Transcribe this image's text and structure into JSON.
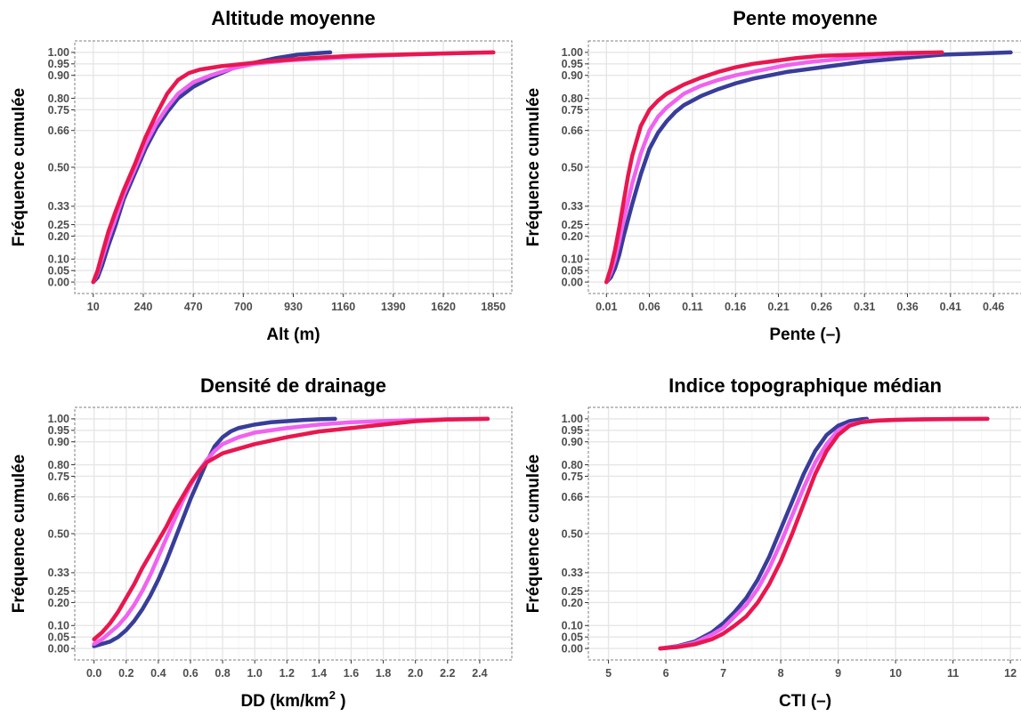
{
  "chart_data": [
    {
      "type": "line",
      "title": "Altitude moyenne",
      "xlabel": "Alt (m)",
      "xlabel_sup": "",
      "xlabel_tail": "",
      "ylabel": "Fréquence cumulée",
      "xlim": [
        -75,
        1935
      ],
      "ylim": [
        -0.05,
        1.05
      ],
      "x_ticks": [
        10,
        240,
        470,
        700,
        930,
        1160,
        1390,
        1620,
        1850
      ],
      "x_tick_labels": [
        "10",
        "240",
        "470",
        "700",
        "930",
        "1160",
        "1390",
        "1620",
        "1850"
      ],
      "y_ticks": [
        0.0,
        0.05,
        0.1,
        0.2,
        0.25,
        0.33,
        0.5,
        0.66,
        0.75,
        0.8,
        0.9,
        0.95,
        1.0
      ],
      "y_tick_labels": [
        "0.00",
        "0.05",
        "0.10",
        "0.20",
        "0.25",
        "0.33",
        "0.50",
        "0.66",
        "0.75",
        "0.80",
        "0.90",
        "0.95",
        "1.00"
      ],
      "grid": true,
      "series": [
        {
          "color": "#383d99",
          "x": [
            10,
            30,
            50,
            80,
            110,
            150,
            200,
            250,
            300,
            350,
            400,
            470,
            550,
            650,
            750,
            850,
            950,
            1050,
            1100
          ],
          "y": [
            0.0,
            0.02,
            0.07,
            0.16,
            0.24,
            0.36,
            0.47,
            0.58,
            0.67,
            0.74,
            0.8,
            0.85,
            0.89,
            0.93,
            0.955,
            0.975,
            0.99,
            0.997,
            1.0
          ]
        },
        {
          "color": "#f062ef",
          "x": [
            10,
            30,
            50,
            80,
            110,
            150,
            200,
            250,
            300,
            350,
            400,
            470,
            550,
            650,
            750,
            900,
            1100,
            1300,
            1500,
            1700,
            1850
          ],
          "y": [
            0.0,
            0.04,
            0.1,
            0.19,
            0.27,
            0.38,
            0.49,
            0.6,
            0.69,
            0.76,
            0.82,
            0.87,
            0.9,
            0.93,
            0.95,
            0.965,
            0.975,
            0.985,
            0.992,
            0.997,
            1.0
          ]
        },
        {
          "color": "#e8174f",
          "x": [
            10,
            30,
            50,
            80,
            110,
            150,
            200,
            250,
            300,
            350,
            400,
            450,
            500,
            600,
            700,
            800,
            1000,
            1200,
            1400,
            1600,
            1850
          ],
          "y": [
            0.0,
            0.05,
            0.12,
            0.22,
            0.3,
            0.4,
            0.51,
            0.63,
            0.73,
            0.82,
            0.88,
            0.91,
            0.925,
            0.94,
            0.95,
            0.96,
            0.975,
            0.985,
            0.99,
            0.995,
            1.0
          ]
        }
      ]
    },
    {
      "type": "line",
      "title": "Pente moyenne",
      "xlabel": "Pente (–)",
      "xlabel_sup": "",
      "xlabel_tail": "",
      "ylabel": "Fréquence cumulée",
      "xlim": [
        -0.011,
        0.493
      ],
      "ylim": [
        -0.05,
        1.05
      ],
      "x_ticks": [
        0.01,
        0.06,
        0.11,
        0.16,
        0.21,
        0.26,
        0.31,
        0.36,
        0.41,
        0.46
      ],
      "x_tick_labels": [
        "0.01",
        "0.06",
        "0.11",
        "0.16",
        "0.21",
        "0.26",
        "0.31",
        "0.36",
        "0.41",
        "0.46"
      ],
      "y_ticks": [
        0.0,
        0.05,
        0.1,
        0.2,
        0.25,
        0.33,
        0.5,
        0.66,
        0.75,
        0.8,
        0.9,
        0.95,
        1.0
      ],
      "y_tick_labels": [
        "0.00",
        "0.05",
        "0.10",
        "0.20",
        "0.25",
        "0.33",
        "0.50",
        "0.66",
        "0.75",
        "0.80",
        "0.90",
        "0.95",
        "1.00"
      ],
      "grid": true,
      "series": [
        {
          "color": "#383d99",
          "x": [
            0.01,
            0.015,
            0.02,
            0.025,
            0.03,
            0.04,
            0.05,
            0.06,
            0.07,
            0.08,
            0.09,
            0.1,
            0.12,
            0.14,
            0.16,
            0.18,
            0.2,
            0.22,
            0.25,
            0.28,
            0.31,
            0.34,
            0.37,
            0.4,
            0.44,
            0.48
          ],
          "y": [
            0.0,
            0.02,
            0.06,
            0.12,
            0.2,
            0.34,
            0.47,
            0.58,
            0.65,
            0.7,
            0.74,
            0.77,
            0.81,
            0.84,
            0.865,
            0.885,
            0.9,
            0.915,
            0.93,
            0.945,
            0.96,
            0.97,
            0.98,
            0.99,
            0.995,
            1.0
          ]
        },
        {
          "color": "#f062ef",
          "x": [
            0.01,
            0.015,
            0.02,
            0.025,
            0.03,
            0.04,
            0.05,
            0.06,
            0.07,
            0.08,
            0.09,
            0.1,
            0.12,
            0.14,
            0.16,
            0.18,
            0.2,
            0.22,
            0.25,
            0.28,
            0.31,
            0.35,
            0.4
          ],
          "y": [
            0.0,
            0.04,
            0.1,
            0.18,
            0.27,
            0.43,
            0.56,
            0.66,
            0.72,
            0.76,
            0.79,
            0.82,
            0.855,
            0.88,
            0.9,
            0.915,
            0.93,
            0.945,
            0.96,
            0.97,
            0.98,
            0.99,
            1.0
          ]
        },
        {
          "color": "#e8174f",
          "x": [
            0.01,
            0.015,
            0.02,
            0.025,
            0.03,
            0.035,
            0.04,
            0.05,
            0.06,
            0.07,
            0.08,
            0.09,
            0.1,
            0.12,
            0.14,
            0.16,
            0.18,
            0.2,
            0.23,
            0.26,
            0.3,
            0.35,
            0.4
          ],
          "y": [
            0.0,
            0.06,
            0.14,
            0.24,
            0.35,
            0.46,
            0.55,
            0.68,
            0.75,
            0.79,
            0.82,
            0.84,
            0.86,
            0.89,
            0.915,
            0.935,
            0.95,
            0.96,
            0.975,
            0.985,
            0.99,
            0.997,
            1.0
          ]
        }
      ]
    },
    {
      "type": "line",
      "title": "Densité de drainage",
      "xlabel": "DD (km/km",
      "xlabel_sup": "2",
      "xlabel_tail": " )",
      "ylabel": "Fréquence cumulée",
      "xlim": [
        -0.12,
        2.6
      ],
      "ylim": [
        -0.05,
        1.05
      ],
      "x_ticks": [
        0.0,
        0.2,
        0.4,
        0.6,
        0.8,
        1.0,
        1.2,
        1.4,
        1.6,
        1.8,
        2.0,
        2.2,
        2.4
      ],
      "x_tick_labels": [
        "0.0",
        "0.2",
        "0.4",
        "0.6",
        "0.8",
        "1.0",
        "1.2",
        "1.4",
        "1.6",
        "1.8",
        "2.0",
        "2.2",
        "2.4"
      ],
      "y_ticks": [
        0.0,
        0.05,
        0.1,
        0.2,
        0.25,
        0.33,
        0.5,
        0.66,
        0.75,
        0.8,
        0.9,
        0.95,
        1.0
      ],
      "y_tick_labels": [
        "0.00",
        "0.05",
        "0.10",
        "0.20",
        "0.25",
        "0.33",
        "0.50",
        "0.66",
        "0.75",
        "0.80",
        "0.90",
        "0.95",
        "1.00"
      ],
      "grid": true,
      "series": [
        {
          "color": "#383d99",
          "x": [
            0.0,
            0.05,
            0.1,
            0.15,
            0.2,
            0.25,
            0.3,
            0.35,
            0.4,
            0.45,
            0.5,
            0.55,
            0.6,
            0.65,
            0.7,
            0.75,
            0.8,
            0.85,
            0.9,
            1.0,
            1.1,
            1.2,
            1.3,
            1.4,
            1.5
          ],
          "y": [
            0.01,
            0.02,
            0.03,
            0.05,
            0.08,
            0.12,
            0.17,
            0.23,
            0.3,
            0.38,
            0.47,
            0.56,
            0.65,
            0.73,
            0.81,
            0.88,
            0.92,
            0.945,
            0.96,
            0.975,
            0.985,
            0.99,
            0.995,
            0.998,
            1.0
          ]
        },
        {
          "color": "#f062ef",
          "x": [
            0.0,
            0.05,
            0.1,
            0.15,
            0.2,
            0.25,
            0.3,
            0.35,
            0.4,
            0.45,
            0.5,
            0.55,
            0.6,
            0.65,
            0.7,
            0.75,
            0.8,
            0.9,
            1.0,
            1.2,
            1.4,
            1.6,
            1.8,
            2.0,
            2.2,
            2.45
          ],
          "y": [
            0.02,
            0.04,
            0.07,
            0.1,
            0.14,
            0.19,
            0.25,
            0.32,
            0.4,
            0.48,
            0.56,
            0.64,
            0.71,
            0.77,
            0.82,
            0.86,
            0.89,
            0.92,
            0.94,
            0.96,
            0.975,
            0.985,
            0.99,
            0.995,
            0.998,
            1.0
          ]
        },
        {
          "color": "#e8174f",
          "x": [
            0.0,
            0.05,
            0.1,
            0.15,
            0.2,
            0.25,
            0.3,
            0.35,
            0.4,
            0.45,
            0.5,
            0.55,
            0.6,
            0.65,
            0.7,
            0.75,
            0.8,
            0.9,
            1.0,
            1.1,
            1.2,
            1.4,
            1.6,
            1.8,
            2.0,
            2.2,
            2.45
          ],
          "y": [
            0.04,
            0.07,
            0.11,
            0.16,
            0.22,
            0.28,
            0.35,
            0.41,
            0.47,
            0.53,
            0.6,
            0.66,
            0.72,
            0.77,
            0.81,
            0.83,
            0.85,
            0.87,
            0.89,
            0.905,
            0.92,
            0.945,
            0.96,
            0.975,
            0.99,
            0.997,
            1.0
          ]
        }
      ]
    },
    {
      "type": "line",
      "title": "Indice topographique médian",
      "xlabel": "CTI (–)",
      "xlabel_sup": "",
      "xlabel_tail": "",
      "ylabel": "Fréquence cumulée",
      "xlim": [
        4.65,
        12.2
      ],
      "ylim": [
        -0.05,
        1.05
      ],
      "x_ticks": [
        5,
        6,
        7,
        8,
        9,
        10,
        11,
        12
      ],
      "x_tick_labels": [
        "5",
        "6",
        "7",
        "8",
        "9",
        "10",
        "11",
        "12"
      ],
      "y_ticks": [
        0.0,
        0.05,
        0.1,
        0.2,
        0.25,
        0.33,
        0.5,
        0.66,
        0.75,
        0.8,
        0.9,
        0.95,
        1.0
      ],
      "y_tick_labels": [
        "0.00",
        "0.05",
        "0.10",
        "0.20",
        "0.25",
        "0.33",
        "0.50",
        "0.66",
        "0.75",
        "0.80",
        "0.90",
        "0.95",
        "1.00"
      ],
      "grid": true,
      "series": [
        {
          "color": "#383d99",
          "x": [
            5.9,
            6.2,
            6.5,
            6.8,
            7.0,
            7.2,
            7.4,
            7.6,
            7.8,
            8.0,
            8.2,
            8.4,
            8.6,
            8.8,
            9.0,
            9.2,
            9.4,
            9.5
          ],
          "y": [
            0.0,
            0.01,
            0.03,
            0.07,
            0.11,
            0.16,
            0.22,
            0.3,
            0.4,
            0.52,
            0.64,
            0.76,
            0.86,
            0.93,
            0.97,
            0.99,
            0.998,
            1.0
          ]
        },
        {
          "color": "#f062ef",
          "x": [
            5.9,
            6.2,
            6.5,
            6.8,
            7.0,
            7.2,
            7.4,
            7.6,
            7.8,
            8.0,
            8.2,
            8.4,
            8.6,
            8.8,
            9.0,
            9.2,
            9.5,
            10.0,
            10.5,
            11.0,
            11.6
          ],
          "y": [
            0.0,
            0.008,
            0.025,
            0.06,
            0.09,
            0.14,
            0.19,
            0.26,
            0.35,
            0.46,
            0.58,
            0.7,
            0.81,
            0.89,
            0.95,
            0.975,
            0.99,
            0.995,
            0.997,
            0.999,
            1.0
          ]
        },
        {
          "color": "#e8174f",
          "x": [
            5.9,
            6.2,
            6.5,
            6.8,
            7.0,
            7.2,
            7.4,
            7.6,
            7.8,
            8.0,
            8.2,
            8.4,
            8.6,
            8.8,
            9.0,
            9.2,
            9.4,
            9.7,
            10.0,
            10.5,
            11.0,
            11.6
          ],
          "y": [
            0.0,
            0.006,
            0.018,
            0.04,
            0.065,
            0.1,
            0.14,
            0.2,
            0.28,
            0.38,
            0.5,
            0.63,
            0.76,
            0.86,
            0.93,
            0.97,
            0.985,
            0.993,
            0.996,
            0.998,
            0.999,
            1.0
          ]
        }
      ]
    }
  ]
}
